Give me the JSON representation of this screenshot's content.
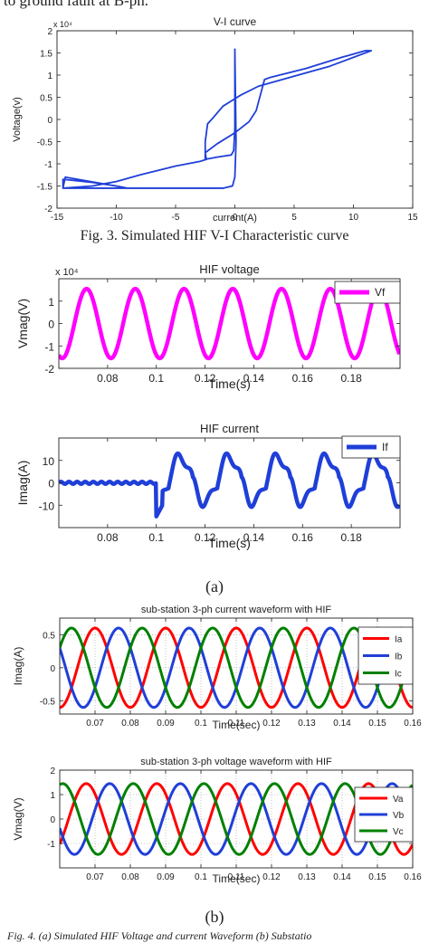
{
  "top_text": "to ground fault at B-ph.",
  "fig3_caption": "Fig. 3. Simulated HIF V-I Characteristic curve",
  "panel_a_label": "(a)",
  "panel_b_label": "(b)",
  "bottom_caption": "Fig. 4. (a) Simulated HIF Voltage and current Waveform (b) Substatio",
  "colors": {
    "blue": "#1f3fd8",
    "magenta": "#ff00ff",
    "red": "#ff0000",
    "green": "#008000"
  },
  "chart_data": [
    {
      "type": "line",
      "title": "V-I curve",
      "xlabel": "current(A)",
      "ylabel": "Voltage(v)",
      "y_exponent": "x 10⁴",
      "xlim": [
        -15,
        15
      ],
      "ylim": [
        -2,
        2
      ],
      "xticks": [
        -15,
        -10,
        -5,
        0,
        5,
        10,
        15
      ],
      "yticks": [
        -2,
        -1.5,
        -1,
        -0.5,
        0,
        0.5,
        1,
        1.5,
        2
      ],
      "series": [
        {
          "color": "#1f3fd8",
          "x": [
            0,
            0,
            -0.1,
            -0.3,
            -1.5,
            -2.5,
            -2.5,
            -2.3,
            -1.8,
            -1,
            0.5,
            2,
            4,
            6,
            8,
            10,
            11.5,
            11,
            9,
            6,
            3,
            2.5,
            2.3,
            1.8,
            1.2,
            0,
            -1.5,
            -2.5,
            -2.4,
            -3,
            -5,
            -8,
            -10,
            -12,
            -14.5,
            -14.3,
            -9,
            -10,
            -12,
            -14.5,
            -14.5,
            -1,
            -0.2,
            0,
            0.1,
            0
          ],
          "y": [
            1.6,
            -0.2,
            -0.7,
            -0.8,
            -0.85,
            -0.9,
            -0.5,
            -0.1,
            0.05,
            0.3,
            0.55,
            0.75,
            0.9,
            1.05,
            1.2,
            1.4,
            1.55,
            1.55,
            1.4,
            1.15,
            0.95,
            0.9,
            0.7,
            0.2,
            -0.05,
            -0.3,
            -0.55,
            -0.75,
            -0.9,
            -0.95,
            -1.05,
            -1.25,
            -1.4,
            -1.5,
            -1.55,
            -1.3,
            -1.55,
            -1.5,
            -1.42,
            -1.35,
            -1.55,
            -1.55,
            -1.5,
            -1.3,
            -0.5,
            1.55
          ]
        }
      ]
    },
    {
      "type": "line",
      "title": "HIF voltage",
      "xlabel": "Time(s)",
      "ylabel": "Vmag(V)",
      "y_exponent": "x 10⁴",
      "xlim": [
        0.06,
        0.2
      ],
      "ylim": [
        -2,
        2
      ],
      "xticks": [
        0.08,
        0.1,
        0.12,
        0.14,
        0.16,
        0.18
      ],
      "yticks": [
        -2,
        -1,
        0,
        1
      ],
      "legend": "top-right",
      "series": [
        {
          "name": "Vf",
          "color": "#ff00ff",
          "frequency_hz": 50,
          "amplitude": 1.55,
          "phase_deg": 245,
          "x_range": [
            0.06,
            0.2
          ]
        }
      ]
    },
    {
      "type": "line",
      "title": "HIF current",
      "xlabel": "Time(s)",
      "ylabel": "Imag(A)",
      "xlim": [
        0.06,
        0.2
      ],
      "ylim": [
        -20,
        20
      ],
      "xticks": [
        0.08,
        0.1,
        0.12,
        0.14,
        0.16,
        0.18
      ],
      "yticks": [
        -10,
        0,
        10
      ],
      "legend": "top-right",
      "series": [
        {
          "name": "If",
          "color": "#1f3fd8",
          "pre_fault_value": 0,
          "fault_time": 0.1,
          "peak": 11.5,
          "trough": -9.5,
          "first_trough": -15,
          "frequency_hz": 50
        }
      ]
    },
    {
      "type": "line",
      "title": "sub-station 3-ph current waveform with HIF",
      "xlabel": "Time(sec)",
      "ylabel": "Imag(A)",
      "xlim": [
        0.06,
        0.16
      ],
      "ylim": [
        -0.7,
        0.75
      ],
      "xticks": [
        0.07,
        0.08,
        0.09,
        0.1,
        0.11,
        0.12,
        0.13,
        0.14,
        0.15,
        0.16
      ],
      "yticks": [
        -0.5,
        0,
        0.5
      ],
      "legend": "right",
      "series": [
        {
          "name": "Ia",
          "color": "#ff0000",
          "amplitude": 0.6,
          "frequency_hz": 50,
          "phase_deg": -90
        },
        {
          "name": "Ib",
          "color": "#1f3fd8",
          "amplitude": 0.6,
          "frequency_hz": 50,
          "phase_deg": 150
        },
        {
          "name": "Ic",
          "color": "#008000",
          "amplitude": 0.6,
          "frequency_hz": 50,
          "phase_deg": 30
        }
      ]
    },
    {
      "type": "line",
      "title": "sub-station 3-ph voltage waveform with HIF",
      "xlabel": "Time(sec)",
      "ylabel": "Vmag(V)",
      "xlim": [
        0.06,
        0.16
      ],
      "ylim": [
        -2,
        2
      ],
      "xticks": [
        0.07,
        0.08,
        0.09,
        0.1,
        0.11,
        0.12,
        0.13,
        0.14,
        0.15,
        0.16
      ],
      "yticks": [
        -1,
        0,
        1,
        2
      ],
      "legend": "right",
      "series": [
        {
          "name": "Va",
          "color": "#ff0000",
          "amplitude": 1.45,
          "frequency_hz": 50,
          "phase_deg": -45
        },
        {
          "name": "Vb",
          "color": "#1f3fd8",
          "amplitude": 1.45,
          "frequency_hz": 50,
          "phase_deg": -165
        },
        {
          "name": "Vc",
          "color": "#008000",
          "amplitude": 1.45,
          "frequency_hz": 50,
          "phase_deg": 75
        }
      ]
    }
  ]
}
